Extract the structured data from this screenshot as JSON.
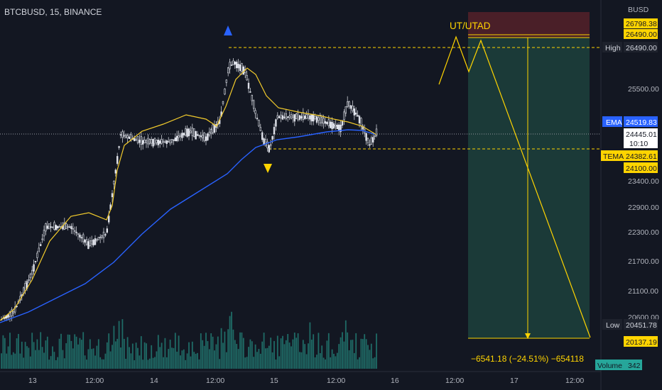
{
  "header": {
    "symbol": "BTCBUSD, 15, BINANCE"
  },
  "currency": "BUSD",
  "price_axis": [
    "25500.00",
    "23400.00",
    "22900.00",
    "22300.00",
    "21700.00",
    "21100.00",
    "20600.00"
  ],
  "time_axis": [
    "13",
    "12:00",
    "14",
    "12:00",
    "15",
    "12:00",
    "16",
    "12:00",
    "17",
    "12:00"
  ],
  "labels": {
    "top1": "26798.38",
    "top2": "26490.00",
    "high_tag": "High",
    "high_value": "26490.00",
    "ema_tag": "EMA",
    "ema_value": "24519.83",
    "last_price": "24445.01",
    "countdown": "10:10",
    "tema_tag": "TEMA",
    "tema_value": "24382.61",
    "level": "24100.00",
    "low_tag": "Low",
    "low_value": "20451.78",
    "target": "20137.19",
    "volume_tag": "Volume",
    "volume_value": "342"
  },
  "annotations": {
    "ut_utad": "UT/UTAD",
    "measure": "−6541.18 (−24.51%) −654118"
  },
  "colors": {
    "background": "#131722",
    "candle": "#e0e3eb",
    "ema": "#2962ff",
    "tema": "#f2cb2c",
    "volume": "#26a69a",
    "accent_yellow": "#ffd400",
    "target_zone": "#1b3a38",
    "stop_zone": "#4a1f28"
  },
  "icons": {
    "peak_marker": "triangle-up-icon",
    "trough_marker": "triangle-down-icon"
  }
}
